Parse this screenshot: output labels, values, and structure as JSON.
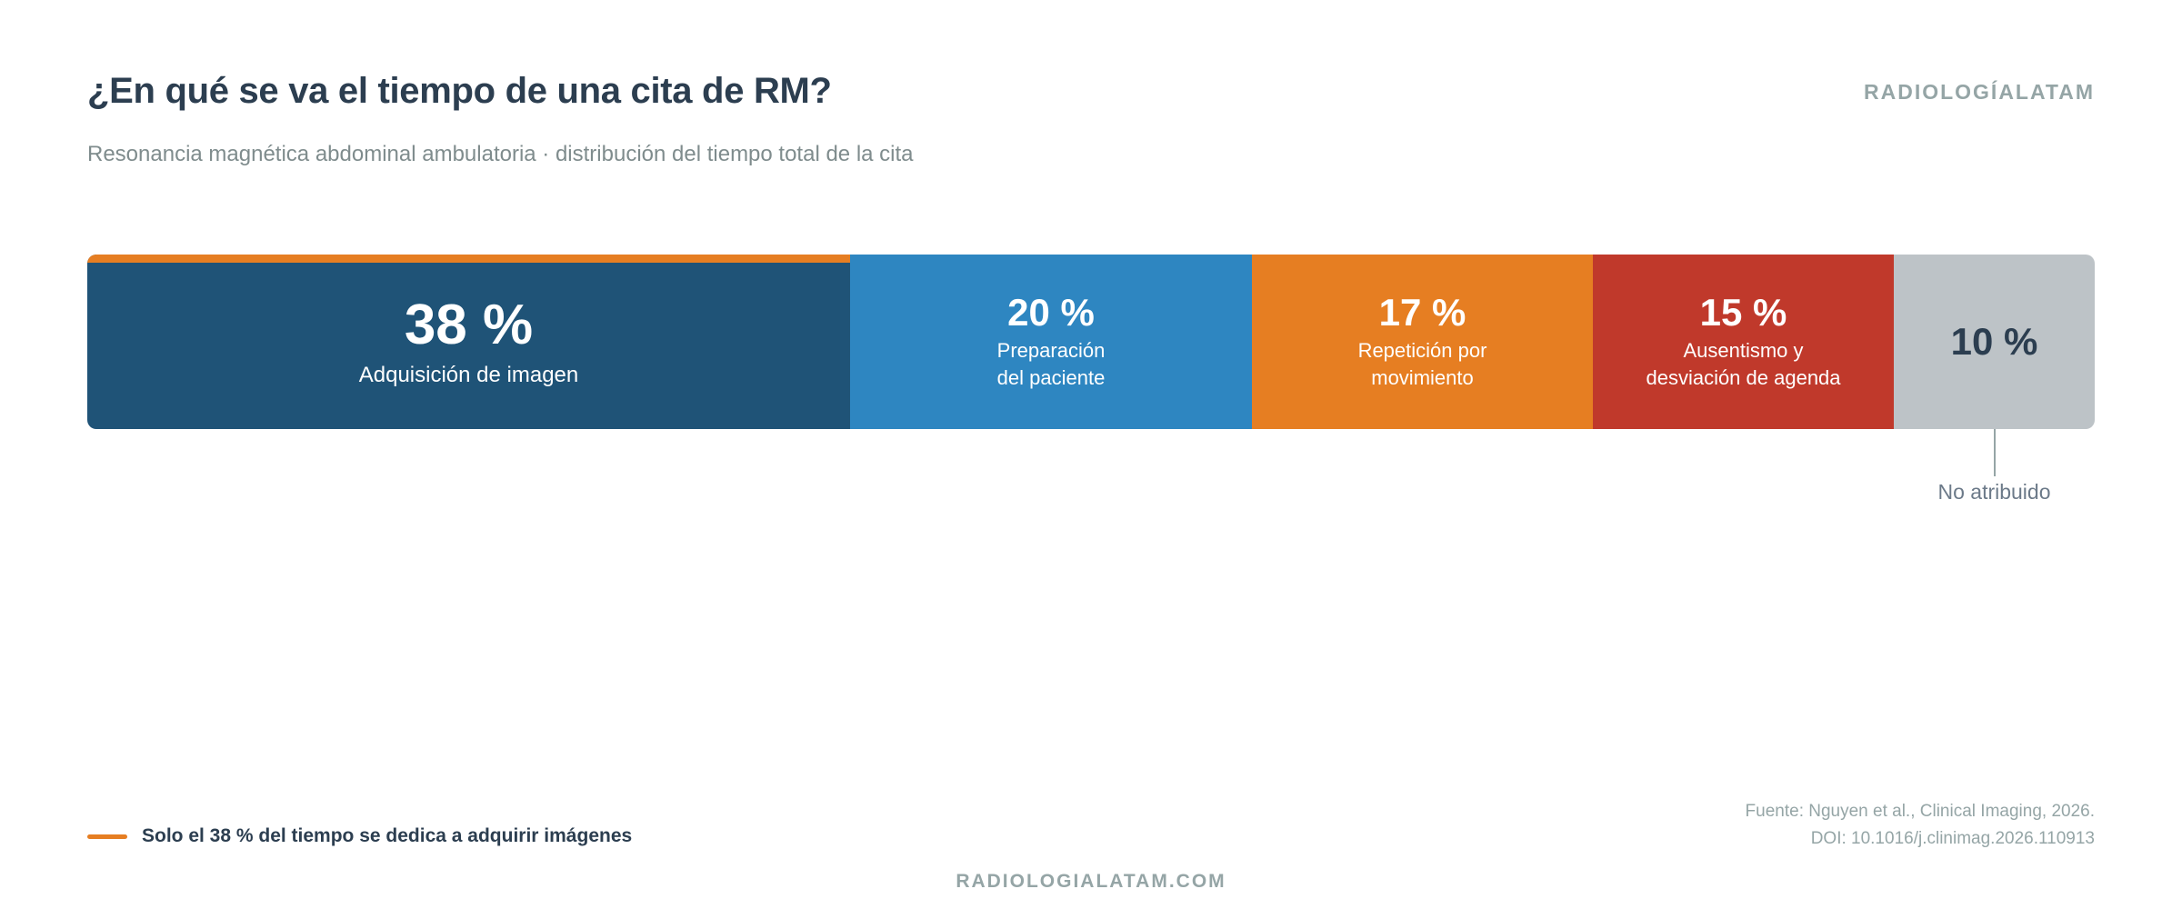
{
  "header": {
    "title": "¿En qué se va el tiempo de una cita de RM?",
    "subtitle": "Resonancia magnética abdominal ambulatoria · distribución del tiempo total de la cita",
    "brand": "RADIOLOGÍALATAM"
  },
  "chart_data": {
    "type": "bar",
    "orientation": "horizontal-stacked",
    "unit": "%",
    "total": 100,
    "segments": [
      {
        "value": 38,
        "pct_label": "38 %",
        "label": "Adquisición de imagen",
        "color": "#1f5377",
        "text_color": "#ffffff",
        "highlight": true
      },
      {
        "value": 20,
        "pct_label": "20 %",
        "label": "Preparación\ndel paciente",
        "color": "#2e86c1",
        "text_color": "#ffffff"
      },
      {
        "value": 17,
        "pct_label": "17 %",
        "label": "Repetición por\nmovimiento",
        "color": "#e67e22",
        "text_color": "#ffffff"
      },
      {
        "value": 15,
        "pct_label": "15 %",
        "label": "Ausentismo y\ndesviación de agenda",
        "color": "#c0392b",
        "text_color": "#ffffff"
      },
      {
        "value": 10,
        "pct_label": "10 %",
        "label": "",
        "callout": "No atribuido",
        "color": "#bdc3c7",
        "text_color": "#2c3e50"
      }
    ],
    "highlight_color": "#e67e22"
  },
  "legend": {
    "text": "Solo el 38 % del tiempo se dedica a adquirir imágenes",
    "color": "#e67e22"
  },
  "footer": {
    "source_line1": "Fuente: Nguyen et al., Clinical Imaging, 2026.",
    "source_line2": "DOI: 10.1016/j.clinimag.2026.110913",
    "brand": "RADIOLOGIALATAM.COM"
  }
}
